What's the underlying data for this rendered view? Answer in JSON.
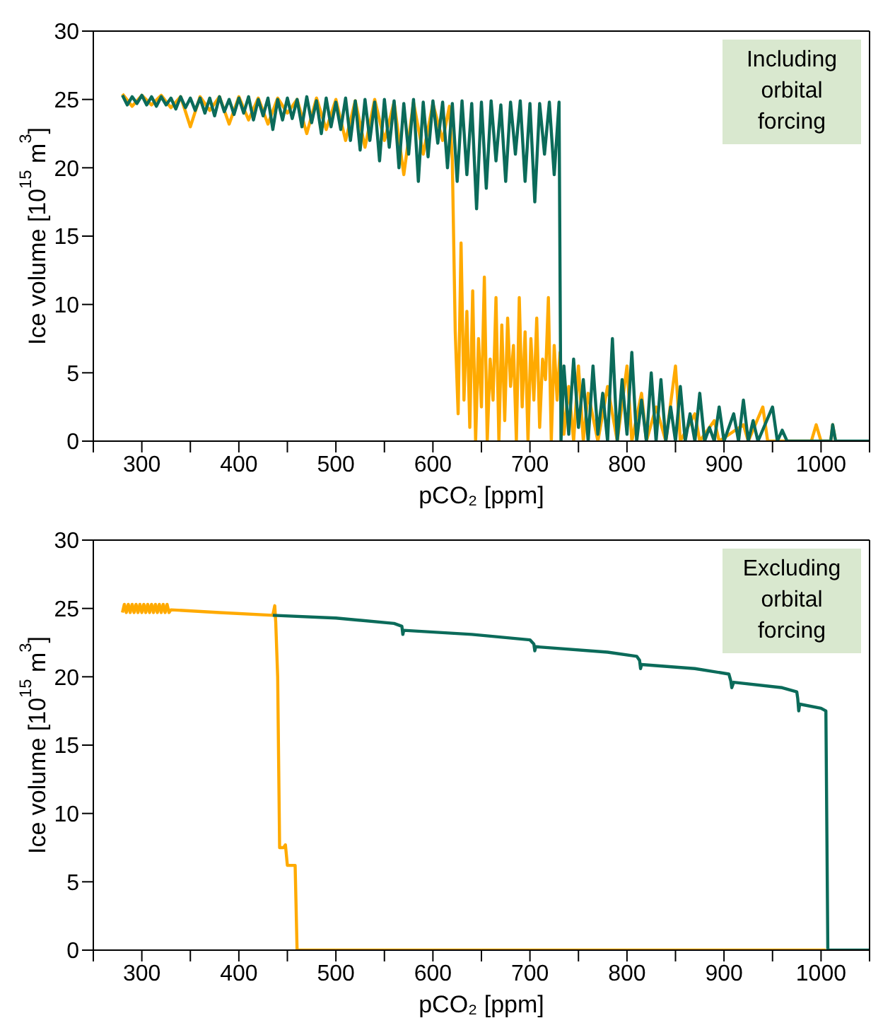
{
  "chart_data": [
    {
      "type": "line",
      "xlabel": "pCO₂ [ppm]",
      "ylabel": "Ice volume [10$^{15}$ m$^{3}$]",
      "annotations": [
        "Including orbital forcing"
      ],
      "xlim": [
        250,
        1050
      ],
      "ylim": [
        0,
        30
      ],
      "xticks": [
        {
          "value": 250,
          "label": null
        },
        300,
        {
          "value": 350,
          "label": null
        },
        400,
        {
          "value": 450,
          "label": null
        },
        500,
        {
          "value": 550,
          "label": null
        },
        600,
        {
          "value": 650,
          "label": null
        },
        700,
        {
          "value": 750,
          "label": null
        },
        800,
        {
          "value": 850,
          "label": null
        },
        900,
        {
          "value": 950,
          "label": null
        },
        1000,
        {
          "value": 1050,
          "label": null
        }
      ],
      "yticks": [
        0,
        5,
        10,
        15,
        20,
        25,
        30
      ],
      "marker": "none",
      "line_style": "solid",
      "series": [
        {
          "color": "#ffaa00",
          "x": [
            280,
            290,
            300,
            310,
            320,
            330,
            340,
            350,
            360,
            370,
            380,
            390,
            400,
            410,
            420,
            430,
            440,
            450,
            460,
            470,
            480,
            490,
            500,
            510,
            520,
            530,
            540,
            550,
            560,
            570,
            580,
            590,
            600,
            610,
            617,
            620,
            623,
            626,
            629,
            632,
            635,
            638,
            641,
            644,
            647,
            650,
            653,
            656,
            659,
            662,
            665,
            668,
            671,
            674,
            677,
            680,
            683,
            686,
            689,
            692,
            695,
            698,
            701,
            704,
            707,
            710,
            713,
            716,
            719,
            722,
            725,
            728,
            731,
            735,
            740,
            745,
            750,
            755,
            760,
            770,
            780,
            790,
            800,
            805,
            815,
            820,
            830,
            840,
            850,
            855,
            870,
            875,
            890,
            895,
            920,
            925,
            940,
            945,
            990,
            995,
            1000,
            1010,
            1012,
            1015
          ],
          "values": [
            25.4,
            24.5,
            25.3,
            24.6,
            25.3,
            24.4,
            25.2,
            23.0,
            25.2,
            24.2,
            25.2,
            23.2,
            25.2,
            23.5,
            25.1,
            23.2,
            25.1,
            24.0,
            25.0,
            22.5,
            25.1,
            22.8,
            25.0,
            22.0,
            24.9,
            21.5,
            25.0,
            22.0,
            24.8,
            19.5,
            24.8,
            21.0,
            24.7,
            22.0,
            24.5,
            20.5,
            8.0,
            2.0,
            14.5,
            3.0,
            9.5,
            1.0,
            11.0,
            0,
            7.5,
            2.5,
            12.0,
            0,
            6.0,
            3.0,
            10.5,
            0,
            8.5,
            1.5,
            9.0,
            4.0,
            7.0,
            0,
            10.5,
            2.5,
            8.0,
            0,
            7.5,
            3.0,
            9.0,
            1.0,
            6.0,
            4.5,
            10.5,
            0,
            7.0,
            3.0,
            6.5,
            0.5,
            4.0,
            0,
            5.5,
            0,
            3.5,
            0,
            4.0,
            0,
            5.5,
            0,
            3.5,
            0,
            2.5,
            0,
            5.5,
            0,
            2.0,
            0,
            1.5,
            0,
            1.2,
            0,
            2.5,
            0,
            0,
            1.2,
            0,
            0,
            1.2,
            0
          ]
        },
        {
          "color": "#0b6b5a",
          "x": [
            280,
            285,
            290,
            295,
            300,
            305,
            310,
            315,
            320,
            325,
            330,
            335,
            340,
            345,
            350,
            355,
            360,
            365,
            370,
            375,
            380,
            385,
            390,
            395,
            400,
            405,
            410,
            415,
            420,
            425,
            430,
            435,
            440,
            445,
            450,
            455,
            460,
            465,
            470,
            475,
            480,
            485,
            490,
            495,
            500,
            505,
            510,
            515,
            520,
            525,
            530,
            535,
            540,
            545,
            550,
            555,
            560,
            565,
            570,
            575,
            580,
            585,
            590,
            595,
            600,
            605,
            610,
            615,
            620,
            625,
            630,
            635,
            640,
            645,
            650,
            655,
            660,
            665,
            670,
            675,
            680,
            685,
            690,
            695,
            700,
            705,
            710,
            715,
            720,
            725,
            730,
            732,
            735,
            740,
            745,
            750,
            755,
            760,
            765,
            770,
            775,
            780,
            785,
            790,
            795,
            800,
            805,
            810,
            815,
            820,
            825,
            830,
            835,
            840,
            845,
            850,
            855,
            860,
            865,
            870,
            875,
            880,
            885,
            890,
            895,
            900,
            910,
            915,
            920,
            925,
            930,
            935,
            950,
            955,
            960,
            965,
            1010,
            1012,
            1015,
            1050
          ],
          "values": [
            25.3,
            24.6,
            25.2,
            24.7,
            25.3,
            24.6,
            25.2,
            24.5,
            25.2,
            24.6,
            25.1,
            24.3,
            25.2,
            24.4,
            25.1,
            24.2,
            25.1,
            24.0,
            25.1,
            23.8,
            25.2,
            24.1,
            25.0,
            23.9,
            25.1,
            24.0,
            25.2,
            23.5,
            25.0,
            23.8,
            25.1,
            22.8,
            25.0,
            23.5,
            25.1,
            23.6,
            25.0,
            23.0,
            25.2,
            23.3,
            24.9,
            22.5,
            25.1,
            23.0,
            24.8,
            22.8,
            25.1,
            22.0,
            24.9,
            21.3,
            25.0,
            22.0,
            24.8,
            20.5,
            25.0,
            21.5,
            24.9,
            20.0,
            24.7,
            21.0,
            25.0,
            19.0,
            24.8,
            20.8,
            24.9,
            21.8,
            24.8,
            20.0,
            24.7,
            19.0,
            24.9,
            19.5,
            24.7,
            17.0,
            24.8,
            18.5,
            24.9,
            20.5,
            24.6,
            19.0,
            24.8,
            21.0,
            24.9,
            19.0,
            24.7,
            17.5,
            24.7,
            21.0,
            24.8,
            19.5,
            24.8,
            0,
            5.5,
            0.5,
            6.0,
            1.0,
            4.5,
            0,
            5.5,
            0.5,
            3.5,
            0,
            7.5,
            0,
            4.5,
            0.5,
            6.5,
            0,
            3.0,
            0,
            5.0,
            0,
            4.5,
            0,
            2.5,
            0,
            4.0,
            0,
            2.0,
            0,
            3.5,
            0,
            1.0,
            0,
            2.5,
            0,
            2.0,
            0,
            3.0,
            0,
            1.5,
            0,
            2.5,
            0,
            0.8,
            0,
            0,
            1.2,
            0,
            0
          ]
        }
      ]
    },
    {
      "type": "line",
      "xlabel": "pCO₂ [ppm]",
      "ylabel": "Ice volume [10$^{15}$ m$^{3}$]",
      "annotations": [
        "Excluding orbital forcing"
      ],
      "xlim": [
        250,
        1050
      ],
      "ylim": [
        0,
        30
      ],
      "xticks": [
        {
          "value": 250,
          "label": null
        },
        300,
        {
          "value": 350,
          "label": null
        },
        400,
        {
          "value": 450,
          "label": null
        },
        500,
        {
          "value": 550,
          "label": null
        },
        600,
        {
          "value": 650,
          "label": null
        },
        700,
        {
          "value": 750,
          "label": null
        },
        800,
        {
          "value": 850,
          "label": null
        },
        900,
        {
          "value": 950,
          "label": null
        },
        1000,
        {
          "value": 1050,
          "label": null
        }
      ],
      "yticks": [
        0,
        5,
        10,
        15,
        20,
        25,
        30
      ],
      "marker": "none",
      "line_style": "solid",
      "series": [
        {
          "color": "#ffaa00",
          "x": [
            280,
            282,
            284,
            286,
            288,
            290,
            292,
            294,
            296,
            298,
            300,
            302,
            304,
            306,
            308,
            310,
            312,
            314,
            316,
            318,
            320,
            322,
            324,
            326,
            328,
            330,
            380,
            435,
            437,
            438,
            440,
            442,
            446,
            448,
            450,
            458,
            460,
            1005
          ],
          "values": [
            24.7,
            25.3,
            24.7,
            25.3,
            24.7,
            25.3,
            24.7,
            25.3,
            24.7,
            25.3,
            24.7,
            25.3,
            24.7,
            25.3,
            24.7,
            25.3,
            24.7,
            25.3,
            24.7,
            25.3,
            24.7,
            25.3,
            24.7,
            25.3,
            24.7,
            24.9,
            24.7,
            24.5,
            25.2,
            24.0,
            20.0,
            7.5,
            7.5,
            7.7,
            6.2,
            6.2,
            0,
            0
          ]
        },
        {
          "color": "#0b6b5a",
          "x": [
            435,
            500,
            560,
            568,
            569,
            570,
            640,
            700,
            704,
            705,
            706,
            780,
            810,
            813,
            814,
            815,
            870,
            905,
            907,
            908,
            910,
            960,
            975,
            976,
            977,
            978,
            1000,
            1005,
            1007,
            1050
          ],
          "values": [
            24.5,
            24.3,
            23.9,
            23.7,
            23.1,
            23.4,
            23.1,
            22.7,
            22.4,
            21.9,
            22.2,
            21.8,
            21.5,
            21.2,
            20.6,
            20.9,
            20.6,
            20.2,
            19.7,
            19.2,
            19.6,
            19.2,
            18.9,
            18.4,
            17.5,
            18.0,
            17.7,
            17.5,
            0,
            0
          ]
        }
      ]
    }
  ]
}
